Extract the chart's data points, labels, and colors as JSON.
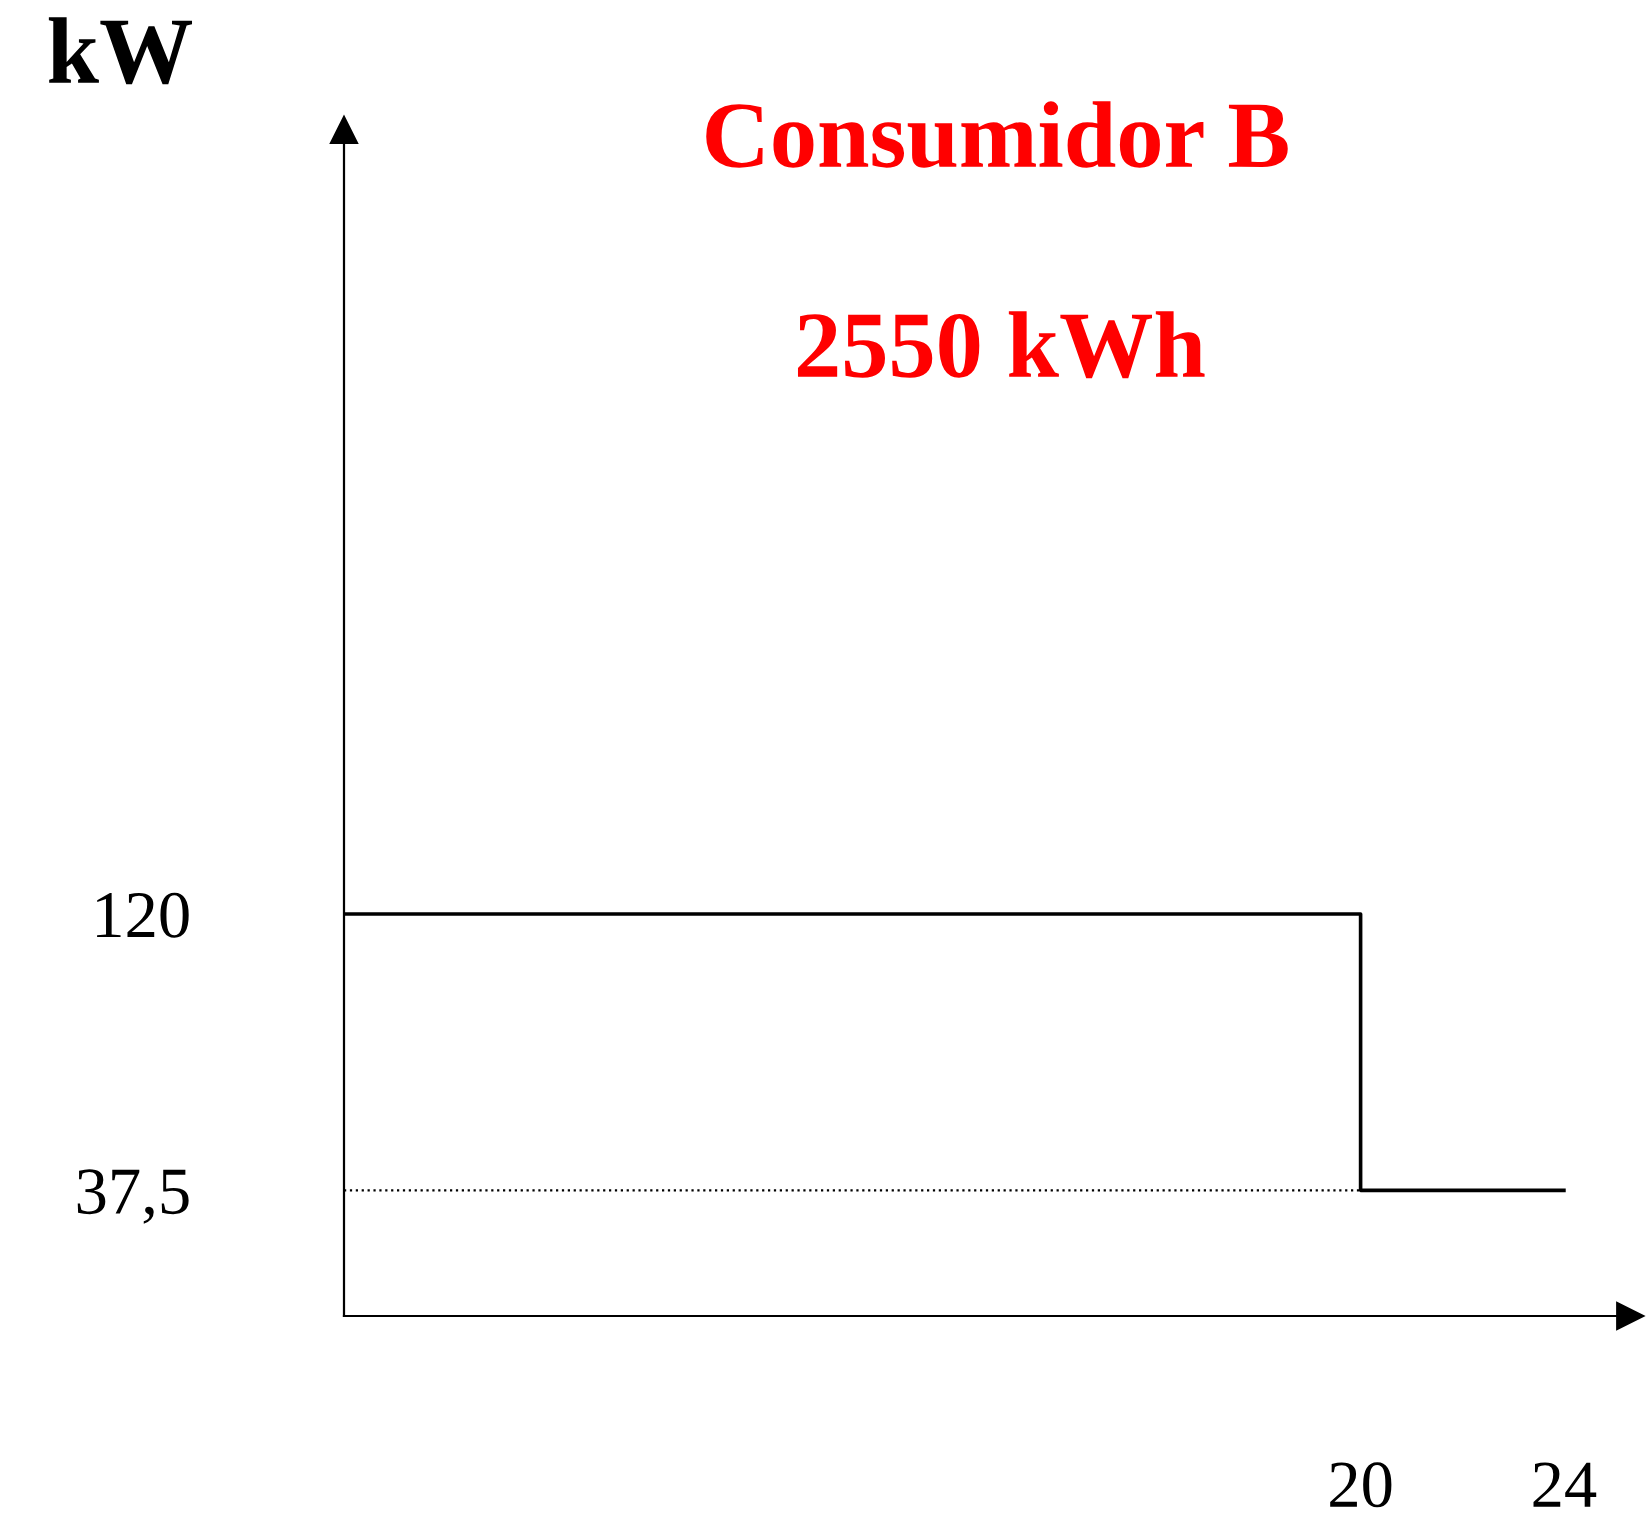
{
  "chart_data": {
    "type": "step",
    "title": "Consumidor B",
    "subtitle": "2550 kWh",
    "ylabel": "kW",
    "x": [
      0,
      20,
      24
    ],
    "series": [
      {
        "color": "#000000",
        "values": [
          120,
          37.5,
          37.5
        ]
      }
    ],
    "xlim": [
      0,
      25.3
    ],
    "ylim": [
      0,
      354
    ],
    "xticks": [
      20,
      24
    ],
    "yticks": [
      120,
      {
        "value": 37.5,
        "label": "37,5"
      }
    ],
    "ref_lines": [
      {
        "axis": "y",
        "value": 37.5,
        "color": "#000000",
        "line_style": "dotted"
      }
    ],
    "grid": false,
    "legend": false
  }
}
